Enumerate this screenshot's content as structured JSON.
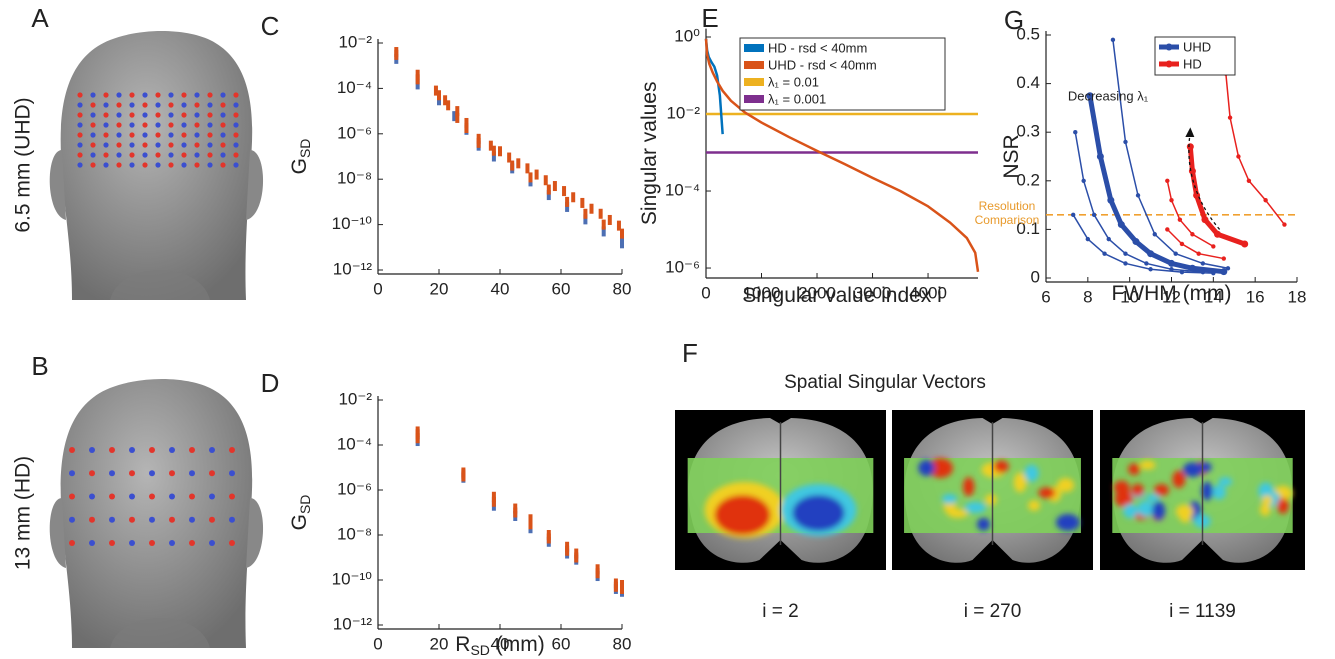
{
  "figure": {
    "heads": [
      {
        "label": "A",
        "caption": "6.5 mm (UHD)"
      },
      {
        "label": "B",
        "caption": "13 mm (HD)"
      }
    ],
    "brains": {
      "label": "F",
      "title": "Spatial Singular Vectors",
      "captions": [
        "i = 2",
        "i = 270",
        "i = 1139"
      ]
    }
  },
  "chart_data": [
    {
      "type": "scatter",
      "label": "C",
      "ylabel": "G",
      "ylabel_sub": "SD",
      "log_y": true,
      "xlim": [
        0,
        80
      ],
      "xticks": [
        0,
        20,
        40,
        60,
        80
      ],
      "ylim": [
        1e-12,
        0.01
      ],
      "yticks": [
        {
          "value": 0.01,
          "label": "10⁻²"
        },
        {
          "value": 0.0001,
          "label": "10⁻⁴"
        },
        {
          "value": 1e-06,
          "label": "10⁻⁶"
        },
        {
          "value": 1e-08,
          "label": "10⁻⁸"
        },
        {
          "value": 1e-10,
          "label": "10⁻¹⁰"
        },
        {
          "value": 1e-12,
          "label": "10⁻¹²"
        }
      ],
      "series": [
        {
          "color": "#4d6fb3",
          "x": [
            6,
            13,
            20,
            25,
            29,
            33,
            38,
            44,
            50,
            56,
            62,
            68,
            74,
            80
          ],
          "y": [
            0.002,
            0.00015,
            3e-05,
            6e-06,
            1.5e-06,
            3e-07,
            1e-07,
            3e-08,
            8e-09,
            2e-09,
            6e-10,
            1.7e-10,
            5e-11,
            1.5e-11
          ]
        },
        {
          "color": "#d95319",
          "x": [
            6,
            6,
            13,
            13,
            19,
            20,
            22,
            23,
            26,
            26,
            29,
            29,
            33,
            33,
            37,
            40,
            43,
            46,
            49,
            52,
            55,
            58,
            61,
            64,
            67,
            70,
            73,
            76,
            79,
            38,
            44,
            50,
            56,
            62,
            68,
            74,
            80
          ],
          "y": [
            0.004,
            0.003,
            0.0004,
            0.00025,
            8e-05,
            5e-05,
            3e-05,
            1.8e-05,
            1e-05,
            5e-06,
            3e-06,
            1.8e-06,
            6e-07,
            4e-07,
            3e-07,
            1.7e-07,
            9e-08,
            5e-08,
            3e-08,
            1.6e-08,
            9e-09,
            5e-09,
            3e-09,
            1.6e-09,
            9e-10,
            5e-10,
            3e-10,
            1.6e-10,
            9e-11,
            1.8e-07,
            4e-08,
            1.2e-08,
            3.5e-09,
            1e-09,
            3e-10,
            1e-10,
            4e-11
          ]
        }
      ]
    },
    {
      "type": "scatter",
      "label": "D",
      "ylabel": "G",
      "ylabel_sub": "SD",
      "xlabel": "R",
      "xlabel_sub": "SD",
      "xlabel_unit": "(mm)",
      "log_y": true,
      "xlim": [
        0,
        80
      ],
      "xticks": [
        0,
        20,
        40,
        60,
        80
      ],
      "ylim": [
        1e-12,
        0.01
      ],
      "yticks": [
        {
          "value": 0.01,
          "label": "10⁻²"
        },
        {
          "value": 0.0001,
          "label": "10⁻⁴"
        },
        {
          "value": 1e-06,
          "label": "10⁻⁶"
        },
        {
          "value": 1e-08,
          "label": "10⁻⁸"
        },
        {
          "value": 1e-10,
          "label": "10⁻¹⁰"
        },
        {
          "value": 1e-12,
          "label": "10⁻¹²"
        }
      ],
      "series": [
        {
          "color": "#4d6fb3",
          "x": [
            13,
            28,
            38,
            45,
            50,
            56,
            62,
            65,
            72,
            78,
            80
          ],
          "y": [
            0.00015,
            3.5e-06,
            2e-07,
            7e-08,
            2e-08,
            5e-09,
            1.5e-09,
            8e-10,
            1.5e-10,
            4e-11,
            3e-11
          ]
        },
        {
          "color": "#d95319",
          "x": [
            13,
            13,
            13,
            28,
            28,
            28,
            38,
            38,
            45,
            45,
            50,
            50,
            56,
            56,
            62,
            62,
            65,
            65,
            72,
            72,
            78,
            78,
            80,
            80
          ],
          "y": [
            0.0004,
            0.0003,
            0.0002,
            6e-06,
            5e-06,
            4e-06,
            5e-07,
            3e-07,
            1.5e-07,
            1e-07,
            5e-08,
            3e-08,
            1e-08,
            7e-09,
            3e-09,
            2e-09,
            1.5e-09,
            1e-09,
            3e-10,
            2e-10,
            7e-11,
            5e-11,
            6e-11,
            4e-11
          ]
        }
      ]
    },
    {
      "type": "line",
      "label": "E",
      "ylabel": "Singular values",
      "xlabel": "Singular value index i",
      "log_y": true,
      "xlim": [
        0,
        4900
      ],
      "xticks": [
        0,
        1000,
        2000,
        3000,
        4000
      ],
      "ylim": [
        7e-07,
        1.3
      ],
      "yticks": [
        {
          "value": 1,
          "label": "10⁰"
        },
        {
          "value": 0.01,
          "label": "10⁻²"
        },
        {
          "value": 0.0001,
          "label": "10⁻⁴"
        },
        {
          "value": 1e-06,
          "label": "10⁻⁶"
        }
      ],
      "series": [
        {
          "name": "HD - rsd < 40mm",
          "color": "#0072bd",
          "x": [
            0,
            20,
            50,
            100,
            150,
            200,
            250,
            300
          ],
          "y": [
            0.9,
            0.45,
            0.3,
            0.22,
            0.17,
            0.1,
            0.03,
            0.003
          ]
        },
        {
          "name": "UHD - rsd < 40mm",
          "color": "#d95319",
          "x": [
            0,
            20,
            60,
            120,
            200,
            300,
            450,
            700,
            1000,
            1500,
            2000,
            2500,
            3000,
            3500,
            4000,
            4400,
            4700,
            4850,
            4900
          ],
          "y": [
            0.9,
            0.35,
            0.2,
            0.12,
            0.07,
            0.04,
            0.022,
            0.011,
            0.006,
            0.0025,
            0.0011,
            0.0005,
            0.00022,
            0.0001,
            4e-05,
            1.5e-05,
            6e-06,
            2.5e-06,
            8e-07
          ]
        }
      ],
      "hlines": [
        {
          "name": "λ₁ = 0.01",
          "value": 0.01,
          "color": "#edb120"
        },
        {
          "name": "λ₁ = 0.001",
          "value": 0.001,
          "color": "#7e2f8e"
        }
      ]
    },
    {
      "type": "line",
      "label": "G",
      "ylabel": "NSR",
      "xlabel": "FWHM (mm)",
      "xlim": [
        6,
        18
      ],
      "xticks": [
        6,
        8,
        10,
        12,
        14,
        16,
        18
      ],
      "ylim": [
        0,
        0.5
      ],
      "yticks": [
        0,
        0.1,
        0.2,
        0.3,
        0.4,
        0.5
      ],
      "series": [
        {
          "color": "#2b4ea8",
          "width": 1.5,
          "x": [
            9.2,
            9.8,
            10.4,
            11.2,
            12.2,
            13.5,
            14.7
          ],
          "y": [
            0.49,
            0.28,
            0.17,
            0.09,
            0.05,
            0.03,
            0.02
          ]
        },
        {
          "name": "UHD",
          "color": "#2b4ea8",
          "width": 5,
          "x": [
            8.1,
            8.6,
            9.1,
            9.6,
            10.3,
            11,
            12,
            13,
            14.5
          ],
          "y": [
            0.375,
            0.25,
            0.16,
            0.11,
            0.075,
            0.05,
            0.03,
            0.02,
            0.013
          ]
        },
        {
          "color": "#2b4ea8",
          "width": 1.5,
          "x": [
            7.4,
            7.8,
            8.3,
            9,
            9.8,
            10.8,
            12,
            13.5
          ],
          "y": [
            0.3,
            0.2,
            0.13,
            0.08,
            0.05,
            0.03,
            0.018,
            0.012
          ]
        },
        {
          "color": "#2b4ea8",
          "width": 1.5,
          "x": [
            7.3,
            8,
            8.8,
            9.8,
            11,
            12.5,
            14
          ],
          "y": [
            0.13,
            0.08,
            0.05,
            0.03,
            0.018,
            0.012,
            0.01
          ]
        },
        {
          "color": "#e8211e",
          "width": 1.5,
          "x": [
            14.6,
            14.8,
            15.2,
            15.7,
            16.5,
            17.4
          ],
          "y": [
            0.42,
            0.33,
            0.25,
            0.2,
            0.16,
            0.11
          ]
        },
        {
          "name": "HD",
          "color": "#e8211e",
          "width": 5,
          "x": [
            12.9,
            13,
            13.2,
            13.6,
            14.2,
            15.5
          ],
          "y": [
            0.27,
            0.22,
            0.17,
            0.12,
            0.09,
            0.07
          ]
        },
        {
          "color": "#e8211e",
          "width": 1.5,
          "x": [
            11.8,
            12,
            12.4,
            13,
            14
          ],
          "y": [
            0.2,
            0.16,
            0.12,
            0.09,
            0.065
          ]
        },
        {
          "color": "#e8211e",
          "width": 1.5,
          "x": [
            11.8,
            12.5,
            13.3,
            14.5
          ],
          "y": [
            0.1,
            0.07,
            0.05,
            0.04
          ]
        }
      ],
      "hlines": [
        {
          "value": 0.13,
          "color": "#f0a030",
          "dashed": true
        }
      ],
      "annotations": [
        "Resolution",
        "Comparison",
        "Decreasing λ₁"
      ]
    }
  ]
}
